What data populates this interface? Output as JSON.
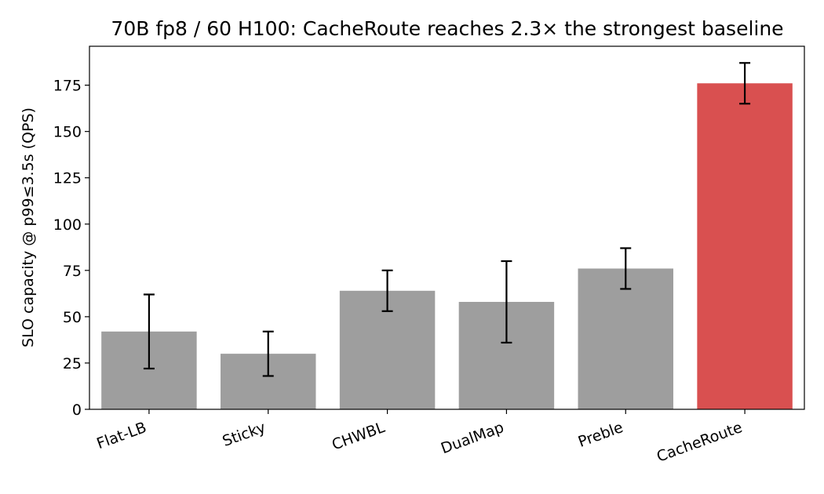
{
  "chart_data": {
    "type": "bar",
    "title": "70B fp8 / 60 H100: CacheRoute reaches 2.3× the strongest baseline",
    "xlabel": "",
    "ylabel": "SLO capacity @ p99≤3.5s (QPS)",
    "categories": [
      "Flat-LB",
      "Sticky",
      "CHWBL",
      "DualMap",
      "Preble",
      "CacheRoute"
    ],
    "values": [
      42,
      30,
      64,
      58,
      76,
      176
    ],
    "error_low": [
      22,
      18,
      53,
      36,
      65,
      165
    ],
    "error_high": [
      62,
      42,
      75,
      80,
      87,
      187
    ],
    "ylim": [
      0,
      196
    ],
    "yticks": [
      0,
      25,
      50,
      75,
      100,
      125,
      150,
      175
    ],
    "grid": false,
    "legend": "none",
    "colors": {
      "baseline": "#9e9e9e",
      "highlight": "#d95050",
      "error_bar": "#000000"
    },
    "highlight_category": "CacheRoute"
  }
}
